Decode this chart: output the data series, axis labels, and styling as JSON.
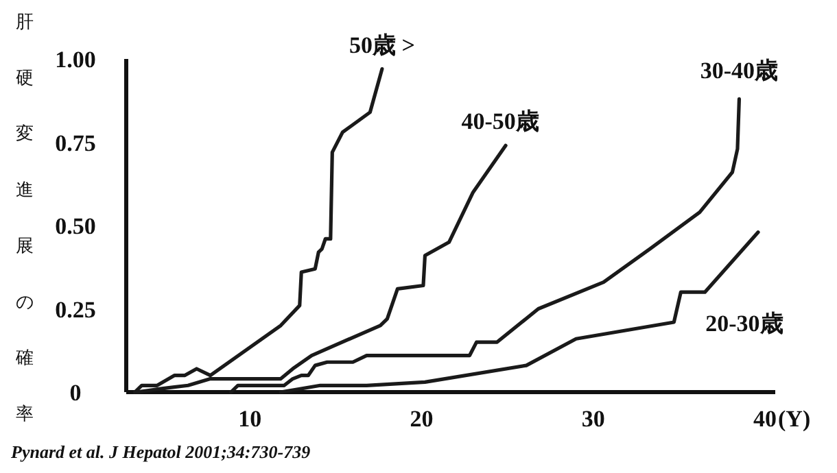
{
  "chart_data": {
    "type": "line",
    "ylabel": "肝硬変進展の確率",
    "xlabel": "(Y)",
    "xlim": [
      2.8,
      40.6
    ],
    "ylim": [
      0,
      1
    ],
    "xticks": [
      10,
      20,
      30,
      40
    ],
    "yticks": [
      0,
      0.25,
      {
        "value": 0.5,
        "label": "0.50"
      },
      0.75,
      {
        "value": 1,
        "label": "1.00"
      }
    ],
    "grid": false,
    "marker": "none",
    "line_style": "solid",
    "annotations": [
      "Pynard et al. J Hepatol 2001;34:730-739"
    ],
    "series": [
      {
        "name": "50歳 >",
        "color": "#1a1a1a",
        "x": [
          3.3,
          3.7,
          4.6,
          5.6,
          6.2,
          6.9,
          7.7,
          11.8,
          12.9,
          13.0,
          13.8,
          14.0,
          14.2,
          14.4,
          14.7,
          14.8,
          15.4,
          17.0,
          17.7
        ],
        "values": [
          0,
          0.02,
          0.02,
          0.05,
          0.05,
          0.07,
          0.05,
          0.2,
          0.26,
          0.36,
          0.37,
          0.42,
          0.43,
          0.46,
          0.46,
          0.72,
          0.78,
          0.84,
          0.97
        ]
      },
      {
        "name": "40-50歳",
        "color": "#1a1a1a",
        "x": [
          3.4,
          4.8,
          6.4,
          7.7,
          11.8,
          12.5,
          13.6,
          17.6,
          18.0,
          18.6,
          20.1,
          20.2,
          21.6,
          23.0,
          24.9
        ],
        "values": [
          0,
          0.01,
          0.02,
          0.04,
          0.04,
          0.07,
          0.11,
          0.2,
          0.22,
          0.31,
          0.32,
          0.41,
          0.45,
          0.6,
          0.74
        ]
      },
      {
        "name": "30-40歳",
        "color": "#1a1a1a",
        "x": [
          8.9,
          9.3,
          12.0,
          12.5,
          13.0,
          13.4,
          13.8,
          14.5,
          16.0,
          16.8,
          20.2,
          22.8,
          23.2,
          24.4,
          26.8,
          30.6,
          33.3,
          36.2,
          38.1,
          38.4,
          38.5
        ],
        "values": [
          0,
          0.02,
          0.02,
          0.04,
          0.05,
          0.05,
          0.08,
          0.09,
          0.09,
          0.11,
          0.11,
          0.11,
          0.15,
          0.15,
          0.25,
          0.33,
          0.43,
          0.54,
          0.66,
          0.73,
          0.88
        ]
      },
      {
        "name": "20-30歳",
        "color": "#1a1a1a",
        "x": [
          11.8,
          14.1,
          16.8,
          20.2,
          26.1,
          29.0,
          34.7,
          35.1,
          36.5,
          39.6
        ],
        "values": [
          0,
          0.02,
          0.02,
          0.03,
          0.08,
          0.16,
          0.21,
          0.3,
          0.3,
          0.48
        ]
      }
    ]
  }
}
